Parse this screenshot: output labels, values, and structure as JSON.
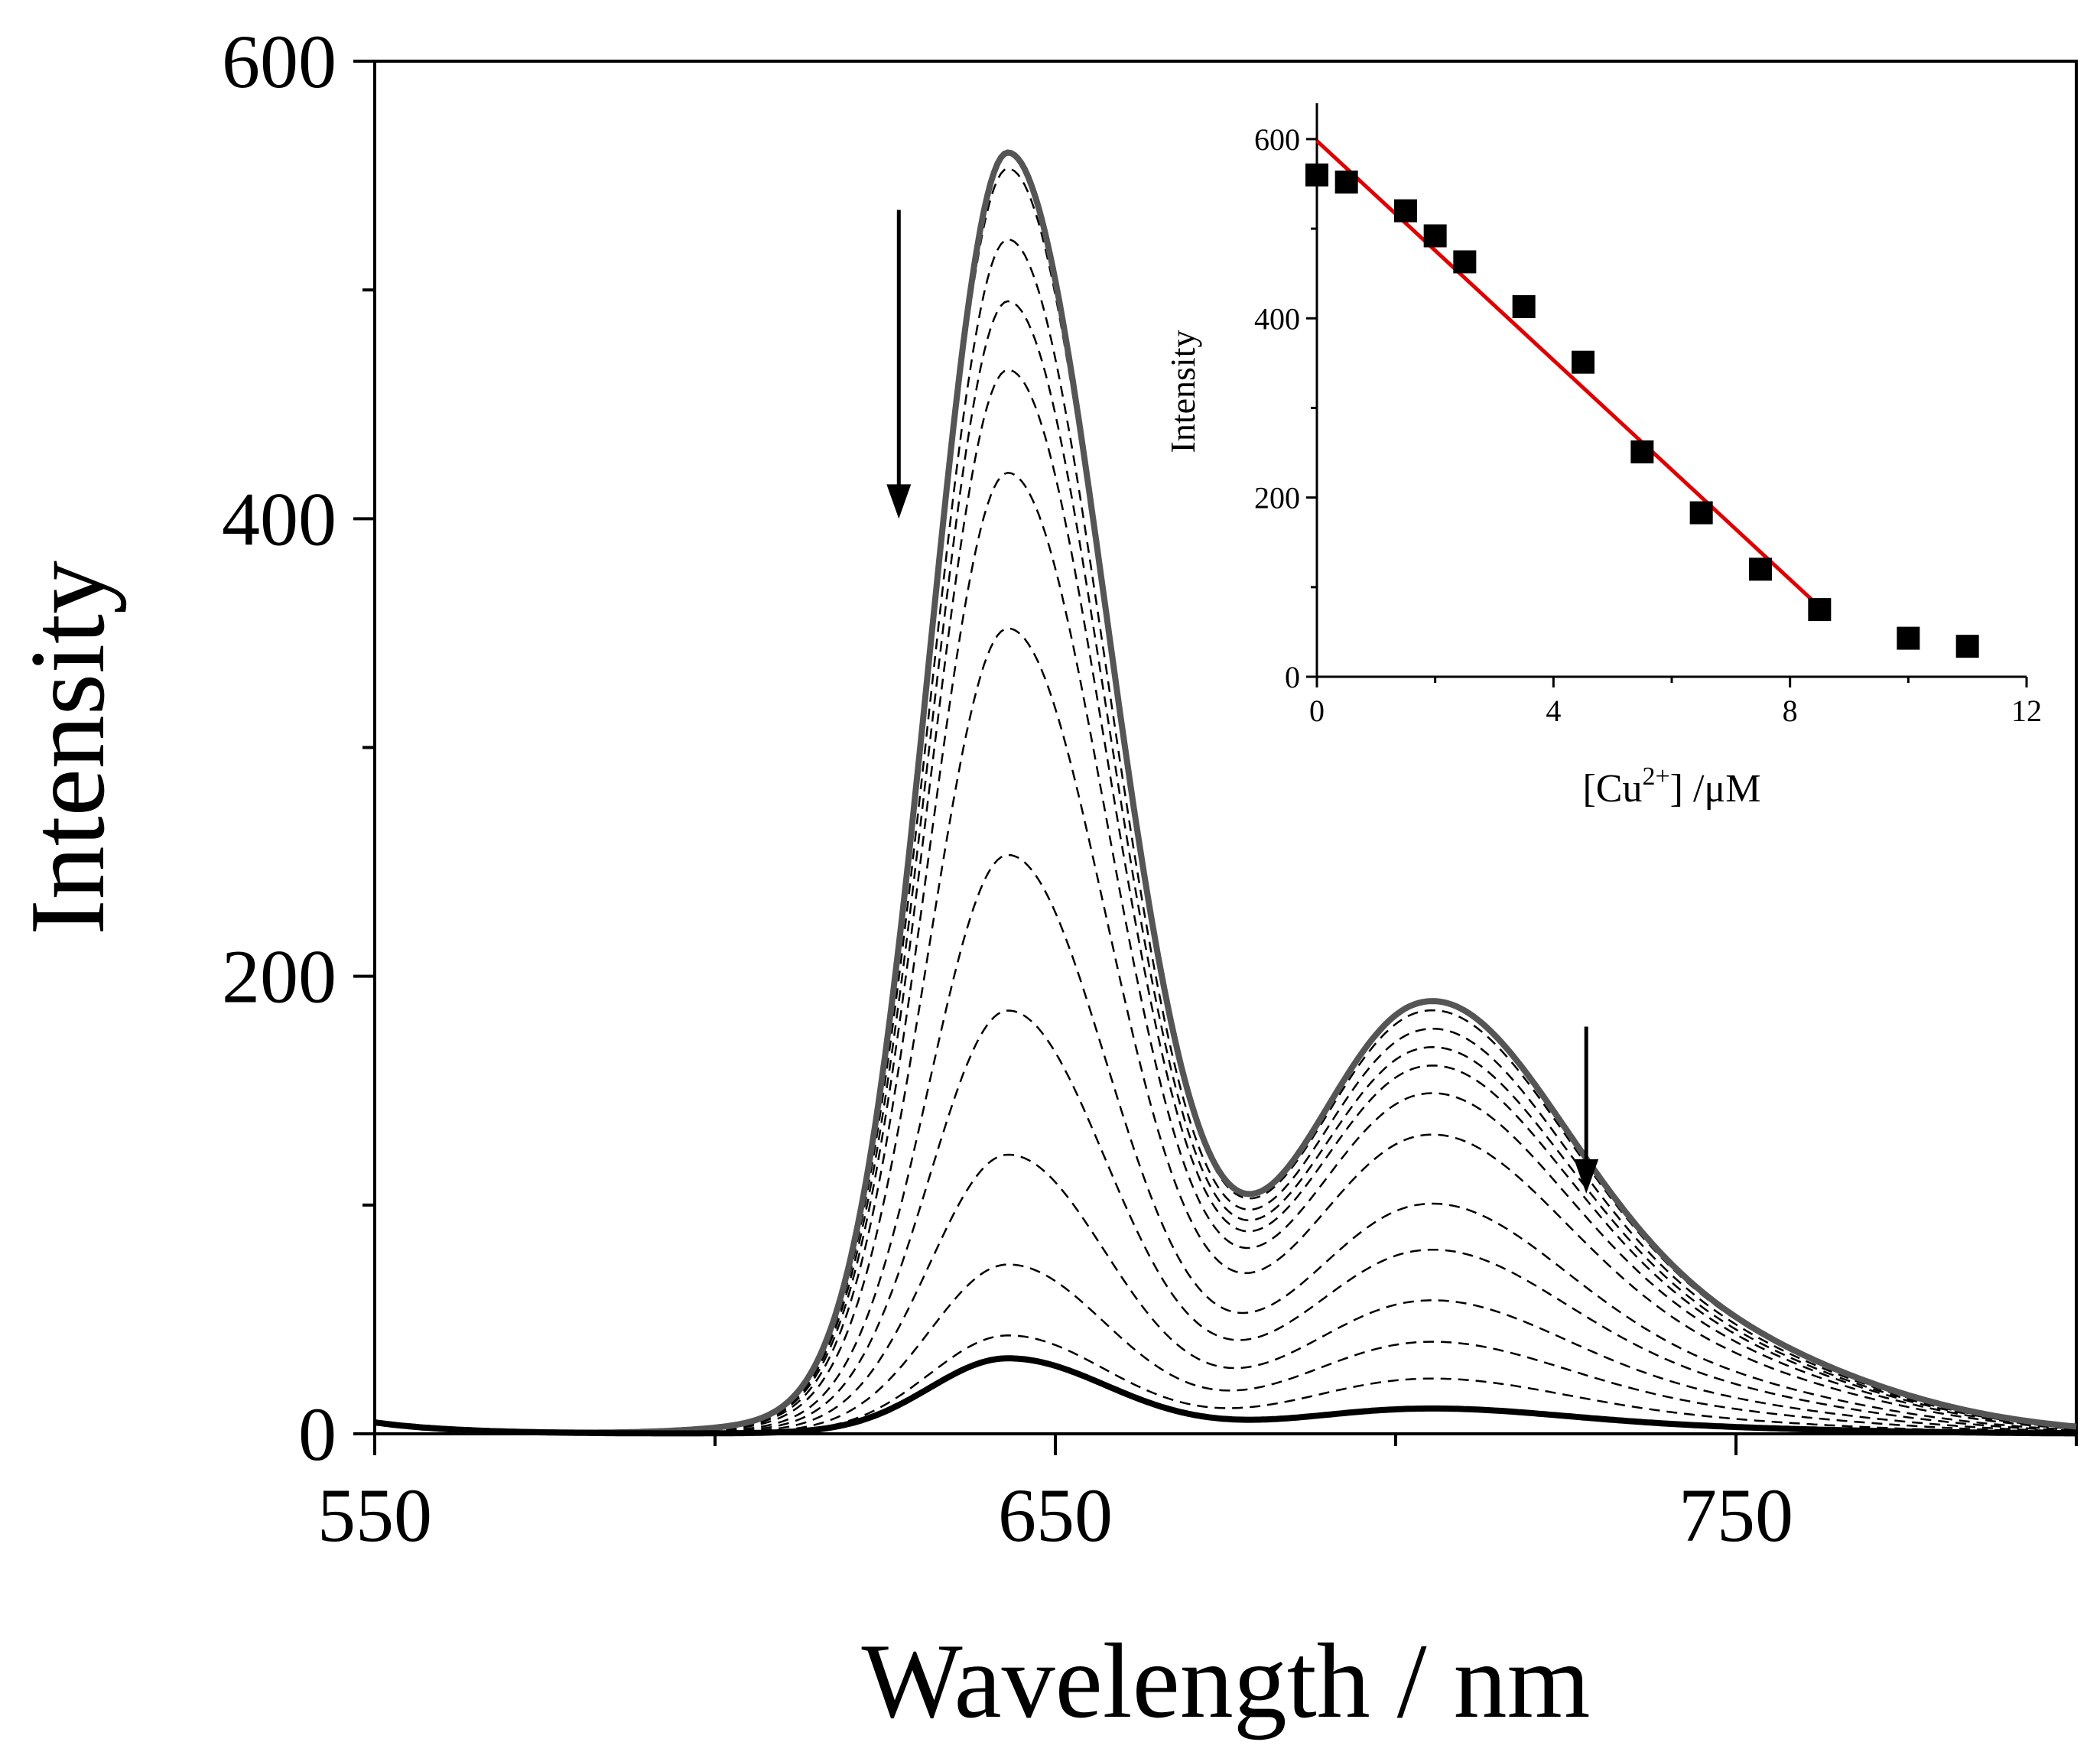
{
  "colors": {
    "axis": "#000000",
    "dashed_spectra": "#000000",
    "initial_spectrum": "#555555",
    "final_spectrum": "#000000",
    "inset_points": "#000000",
    "inset_fit_line": "#e00000"
  },
  "chart_data": [
    {
      "type": "line",
      "xlabel": "Wavelength / nm",
      "ylabel": "Intensity",
      "xlim": [
        550,
        800
      ],
      "ylim": [
        0,
        600
      ],
      "x_ticks": [
        550,
        650,
        750
      ],
      "x_minor_ticks": [
        600,
        700,
        800
      ],
      "y_ticks": [
        0,
        200,
        400,
        600
      ],
      "y_minor_ticks": [
        100,
        300,
        500
      ],
      "grid": false,
      "peaks_nm": [
        643,
        703
      ],
      "series": [
        {
          "style": "solid-thick-grey",
          "peak1": 560,
          "peak2": 188,
          "valley": 162
        },
        {
          "style": "dashed",
          "peak1": 553,
          "peak2": 184,
          "valley": 158
        },
        {
          "style": "dashed",
          "peak1": 522,
          "peak2": 176,
          "valley": 152
        },
        {
          "style": "dashed",
          "peak1": 495,
          "peak2": 168,
          "valley": 145
        },
        {
          "style": "dashed",
          "peak1": 465,
          "peak2": 160,
          "valley": 138
        },
        {
          "style": "dashed",
          "peak1": 420,
          "peak2": 148,
          "valley": 128
        },
        {
          "style": "dashed",
          "peak1": 352,
          "peak2": 130,
          "valley": 110
        },
        {
          "style": "dashed",
          "peak1": 253,
          "peak2": 100,
          "valley": 84
        },
        {
          "style": "dashed",
          "peak1": 185,
          "peak2": 80,
          "valley": 66
        },
        {
          "style": "dashed",
          "peak1": 122,
          "peak2": 58,
          "valley": 48
        },
        {
          "style": "dashed",
          "peak1": 74,
          "peak2": 40,
          "valley": 34
        },
        {
          "style": "dashed",
          "peak1": 43,
          "peak2": 24,
          "valley": 20
        },
        {
          "style": "solid-thick-black",
          "peak1": 33,
          "peak2": 11,
          "valley": 9
        }
      ],
      "annotations": [
        {
          "type": "arrow-down",
          "x": 627,
          "y_from": 535,
          "y_to": 400
        },
        {
          "type": "arrow-down",
          "x": 728,
          "y_from": 178,
          "y_to": 105
        }
      ]
    },
    {
      "type": "scatter",
      "inset": true,
      "xlabel": "[Cu2+] /μM",
      "xlabel_parts": {
        "base": "[Cu",
        "sup": "2+",
        "tail": "] /μM"
      },
      "ylabel": "Intensity",
      "xlim": [
        0,
        12
      ],
      "ylim": [
        0,
        640
      ],
      "x_ticks": [
        0,
        4,
        8,
        12
      ],
      "y_ticks": [
        0,
        200,
        400,
        600
      ],
      "x": [
        0,
        0.5,
        1.5,
        2,
        2.5,
        3.5,
        4.5,
        5.5,
        6.5,
        7.5,
        8.5,
        10,
        11
      ],
      "y": [
        560,
        552,
        520,
        492,
        463,
        413,
        351,
        251,
        183,
        120,
        75,
        43,
        34
      ],
      "fit_line": {
        "x": [
          0,
          8.5
        ],
        "y": [
          598,
          78
        ]
      }
    }
  ]
}
